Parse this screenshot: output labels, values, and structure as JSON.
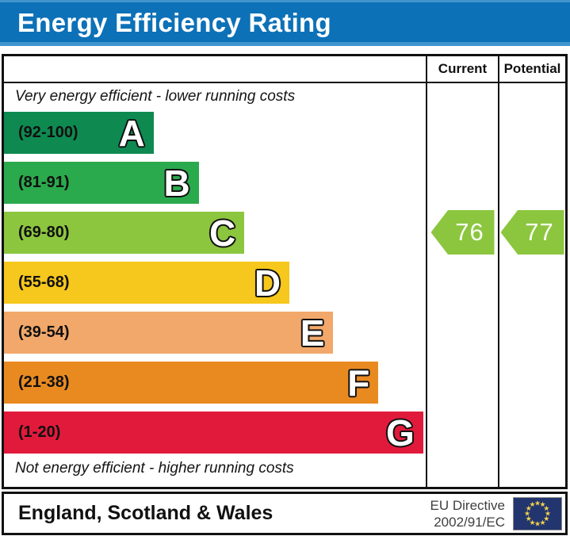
{
  "header": {
    "title": "Energy Efficiency Rating",
    "background": "#0d71b7"
  },
  "columns": {
    "current_label": "Current",
    "potential_label": "Potential"
  },
  "captions": {
    "top": "Very energy efficient - lower running costs",
    "bottom": "Not energy efficient - higher running costs"
  },
  "chart_data": {
    "type": "bar",
    "title": "Energy Efficiency Rating",
    "subtype": "uk-epc-rating-band-chart",
    "bands": [
      {
        "letter": "A",
        "range_label": "(92-100)",
        "min": 92,
        "max": 100,
        "color": "#0e8a51",
        "width_pct": 35.5
      },
      {
        "letter": "B",
        "range_label": "(81-91)",
        "min": 81,
        "max": 91,
        "color": "#2ba94d",
        "width_pct": 46.2
      },
      {
        "letter": "C",
        "range_label": "(69-80)",
        "min": 69,
        "max": 80,
        "color": "#8cc63f",
        "width_pct": 57.0
      },
      {
        "letter": "D",
        "range_label": "(55-68)",
        "min": 55,
        "max": 68,
        "color": "#f6c71c",
        "width_pct": 67.7
      },
      {
        "letter": "E",
        "range_label": "(39-54)",
        "min": 39,
        "max": 54,
        "color": "#f2a86a",
        "width_pct": 78.1
      },
      {
        "letter": "F",
        "range_label": "(21-38)",
        "min": 21,
        "max": 38,
        "color": "#e98a21",
        "width_pct": 88.8
      },
      {
        "letter": "G",
        "range_label": "(1-20)",
        "min": 1,
        "max": 20,
        "color": "#e11a3c",
        "width_pct": 99.4
      }
    ],
    "current": {
      "value": 76,
      "band": "C",
      "color": "#8cc63f"
    },
    "potential": {
      "value": 77,
      "band": "C",
      "color": "#8cc63f"
    },
    "value_scale": [
      1,
      100
    ],
    "legend_position": "none",
    "grid": false
  },
  "footer": {
    "region": "England, Scotland & Wales",
    "directive": {
      "line1": "EU Directive",
      "line2": "2002/91/EC"
    },
    "eu_flag": {
      "background": "#23356e",
      "star_color": "#f1d24b",
      "star_count": 12
    }
  }
}
